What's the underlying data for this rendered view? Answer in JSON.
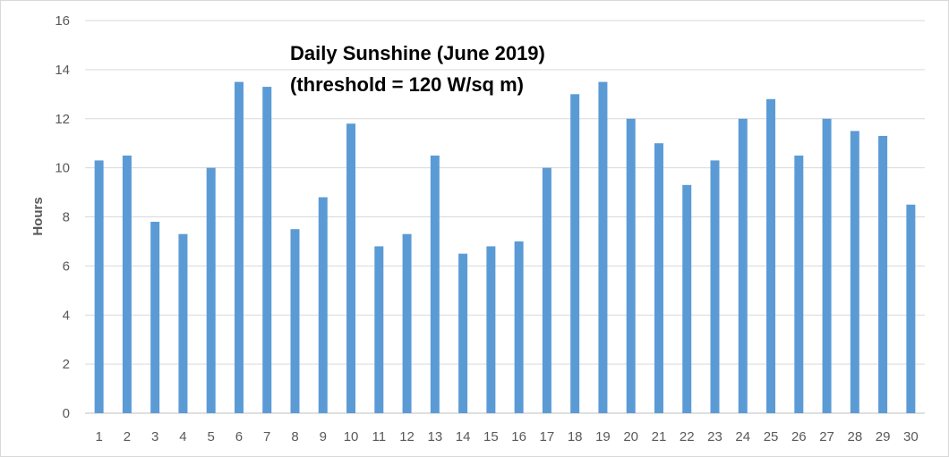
{
  "chart_data": {
    "type": "bar",
    "title_lines": [
      "Daily Sunshine (June 2019)",
      "(threshold = 120 W/sq m)"
    ],
    "xlabel": "",
    "ylabel": "Hours",
    "categories": [
      "1",
      "2",
      "3",
      "4",
      "5",
      "6",
      "7",
      "8",
      "9",
      "10",
      "11",
      "12",
      "13",
      "14",
      "15",
      "16",
      "17",
      "18",
      "19",
      "20",
      "21",
      "22",
      "23",
      "24",
      "25",
      "26",
      "27",
      "28",
      "29",
      "30"
    ],
    "values": [
      10.3,
      10.5,
      7.8,
      7.3,
      10.0,
      13.5,
      13.3,
      7.5,
      8.8,
      11.8,
      6.8,
      7.3,
      10.5,
      6.5,
      6.8,
      7.0,
      10.0,
      13.0,
      13.5,
      12.0,
      11.0,
      9.3,
      10.3,
      12.0,
      12.8,
      10.5,
      12.0,
      11.5,
      11.3,
      8.5
    ],
    "ylim": [
      0,
      16
    ],
    "yticks": [
      "0",
      "2",
      "4",
      "6",
      "8",
      "10",
      "12",
      "14",
      "16"
    ],
    "grid": true,
    "legend": "none",
    "colors": {
      "bar": "#5b9bd5",
      "grid": "#d9d9d9",
      "axis": "#bfbfbf"
    }
  }
}
